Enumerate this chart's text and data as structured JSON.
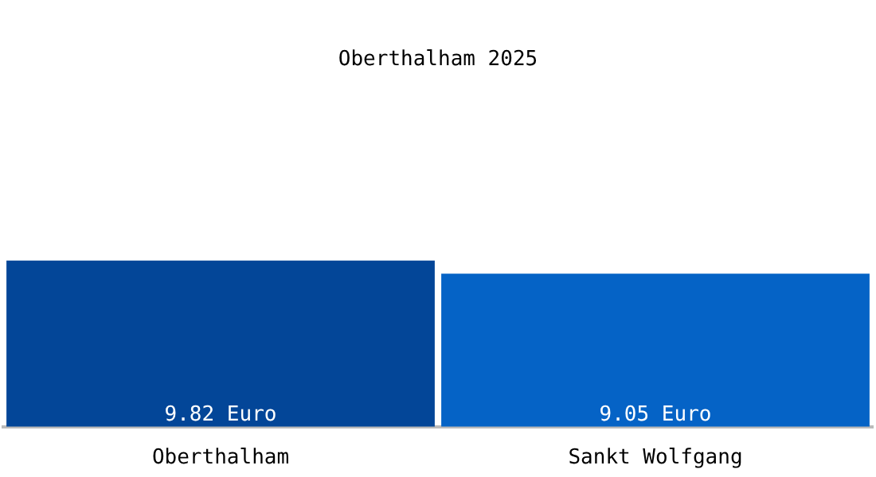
{
  "chart_data": {
    "type": "bar",
    "title": "Oberthalham 2025",
    "categories": [
      "Oberthalham",
      "Sankt Wolfgang"
    ],
    "values": [
      9.82,
      9.05
    ],
    "colors": [
      "#034698",
      "#0563c6"
    ],
    "data_labels": true,
    "value_labels": [
      "9.82 Euro",
      "9.05 Euro"
    ],
    "legend": false
  }
}
